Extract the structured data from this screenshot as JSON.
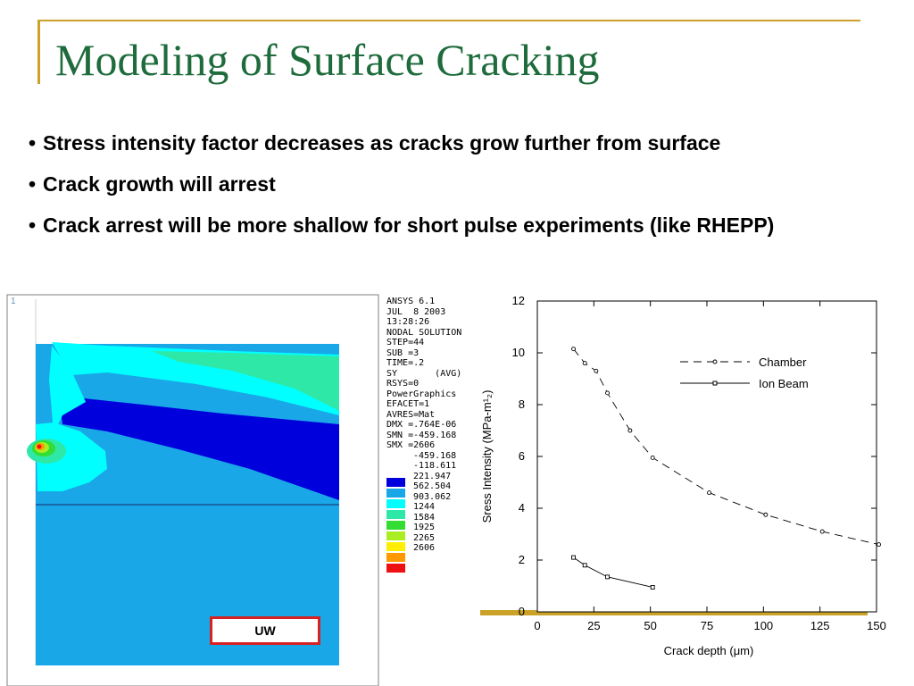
{
  "slide": {
    "title": "Modeling of Surface Cracking",
    "bullets": [
      "Stress intensity factor decreases as cracks grow further from surface",
      "Crack growth will arrest",
      "Crack arrest will be more shallow for short pulse experiments (like RHEPP)"
    ]
  },
  "fea": {
    "corner_label": "1",
    "header_lines": [
      "ANSYS 6.1",
      "JUL  8 2003",
      "13:28:26",
      "NODAL SOLUTION",
      "STEP=44",
      "SUB =3",
      "TIME=.2",
      "SY       (AVG)",
      "RSYS=0",
      "PowerGraphics",
      "EFACET=1",
      "AVRES=Mat",
      "DMX =.764E-06",
      "SMN =-459.168",
      "SMX =2606"
    ],
    "contour_levels": [
      {
        "value": "-459.168",
        "color": null
      },
      {
        "value": "-118.611",
        "color": "#0000dd"
      },
      {
        "value": "221.947",
        "color": "#1aa7e8"
      },
      {
        "value": "562.504",
        "color": "#00ffff"
      },
      {
        "value": "903.062",
        "color": "#2ee8a8"
      },
      {
        "value": "1244",
        "color": "#33dd33"
      },
      {
        "value": "1584",
        "color": "#aaee22"
      },
      {
        "value": "1925",
        "color": "#ffee00"
      },
      {
        "value": "2265",
        "color": "#ff9900"
      },
      {
        "value": "2606",
        "color": "#ee1111"
      }
    ],
    "colors": {
      "deep_blue": "#0000dd",
      "light_blue": "#1aa7e8",
      "cyan": "#00ffff",
      "sea_green": "#2ee8a8",
      "green": "#33dd33",
      "yellow_green": "#aaee22",
      "yellow": "#ffee00",
      "orange": "#ff9900",
      "red": "#ee1111"
    },
    "box_label": "UW"
  },
  "chart_data": {
    "type": "line",
    "title": "",
    "xlabel": "Crack depth (μm)",
    "ylabel": "Sress Intensity (MPa-m¹₂)",
    "xlim": [
      0,
      150
    ],
    "ylim": [
      0,
      12
    ],
    "xticks": [
      0,
      25,
      50,
      75,
      100,
      125,
      150
    ],
    "yticks": [
      0,
      2,
      4,
      6,
      8,
      10,
      12
    ],
    "legend_position": "top-right",
    "series": [
      {
        "name": "Chamber",
        "marker": "circle",
        "dash": "dashed",
        "x": [
          16,
          21,
          26,
          31,
          41,
          51,
          76,
          101,
          126,
          151
        ],
        "y": [
          10.15,
          9.6,
          9.3,
          8.45,
          7.0,
          5.95,
          4.6,
          3.75,
          3.1,
          2.6
        ]
      },
      {
        "name": "Ion Beam",
        "marker": "square",
        "dash": "solid",
        "x": [
          16,
          21,
          31,
          51
        ],
        "y": [
          2.1,
          1.8,
          1.35,
          0.95
        ]
      }
    ]
  }
}
